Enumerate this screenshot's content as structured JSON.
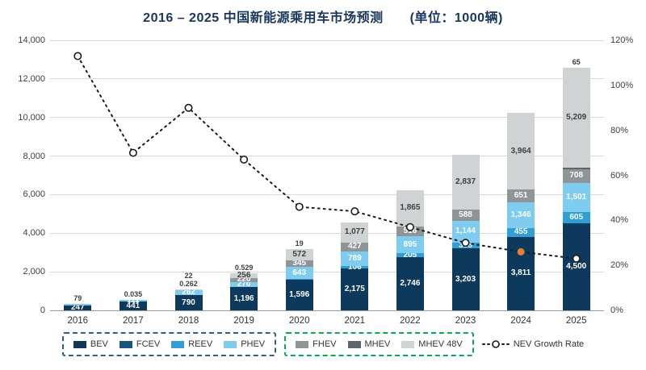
{
  "title": "2016 – 2025 中国新能源乘用车市场预测",
  "title_unit": "(单位：1000辆)",
  "chart_data": {
    "type": "bar",
    "subtype": "stacked-bars-with-line",
    "categories": [
      "2016",
      "2017",
      "2018",
      "2019",
      "2020",
      "2021",
      "2022",
      "2023",
      "2024",
      "2025"
    ],
    "series": [
      {
        "name": "BEV",
        "color": "#0d3a5c",
        "label_color": "#ffffff",
        "values": [
          247,
          441,
          790,
          1196,
          1596,
          2175,
          2746,
          3203,
          3811,
          4500
        ]
      },
      {
        "name": "FCEV",
        "color": "#17567f",
        "label_color": "#ffffff",
        "values": [
          0,
          0.035,
          0.262,
          0.529,
          0,
          0,
          0,
          0,
          0,
          0
        ]
      },
      {
        "name": "REEV",
        "color": "#2f9fd6",
        "label_color": "#ffffff",
        "values": [
          0,
          0,
          0,
          0,
          19,
          106,
          205,
          308,
          455,
          605
        ]
      },
      {
        "name": "PHEV",
        "color": "#7ecdf0",
        "label_color": "#ffffff",
        "values": [
          79,
          111,
          262,
          270,
          643,
          789,
          895,
          1144,
          1346,
          1501
        ]
      },
      {
        "name": "FHEV",
        "color": "#8f9496",
        "label_color": "#ffffff",
        "values": [
          0,
          0,
          0,
          220,
          345,
          427,
          516,
          588,
          651,
          708
        ]
      },
      {
        "name": "MHEV",
        "color": "#5f6568",
        "label_color": "#ffffff",
        "values": [
          0,
          0,
          0,
          0,
          0,
          0,
          0,
          0,
          0,
          65
        ]
      },
      {
        "name": "MHEV 48V",
        "color": "#d0d3d4",
        "label_color": "#3f3f3f",
        "values": [
          0,
          0,
          22,
          256,
          572,
          1077,
          1865,
          2837,
          3964,
          5209
        ]
      }
    ],
    "line": {
      "name": "NEV Growth Rate",
      "values_pct": [
        113,
        70,
        90,
        67,
        46,
        44,
        37,
        30,
        26,
        23
      ],
      "color": "#1b1b1b",
      "marker_fill": "#ffffff",
      "highlight_index": 8,
      "highlight_color": "#ed7d31"
    },
    "y_left": {
      "min": 0,
      "max": 14000,
      "step": 2000,
      "tick_labels": [
        "0",
        "2,000",
        "4,000",
        "6,000",
        "8,000",
        "10,000",
        "12,000",
        "14,000"
      ]
    },
    "y_right": {
      "min": 0,
      "max": 120,
      "step": 20,
      "suffix": "%",
      "tick_labels": [
        "0%",
        "20%",
        "40%",
        "60%",
        "80%",
        "100%",
        "120%"
      ]
    },
    "grid": true,
    "legend_position": "bottom"
  },
  "legend": {
    "groups": [
      {
        "border_color": "#2e5f8a",
        "items": [
          {
            "label": "BEV",
            "color": "#0d3a5c"
          },
          {
            "label": "FCEV",
            "color": "#17567f"
          },
          {
            "label": "REEV",
            "color": "#2f9fd6"
          },
          {
            "label": "PHEV",
            "color": "#7ecdf0"
          }
        ]
      },
      {
        "border_color": "#00b050",
        "items": [
          {
            "label": "FHEV",
            "color": "#8f9496"
          },
          {
            "label": "MHEV",
            "color": "#5f6568"
          },
          {
            "label": "MHEV 48V",
            "color": "#d0d3d4"
          }
        ]
      }
    ],
    "line_item": {
      "label": "NEV Growth Rate"
    }
  }
}
